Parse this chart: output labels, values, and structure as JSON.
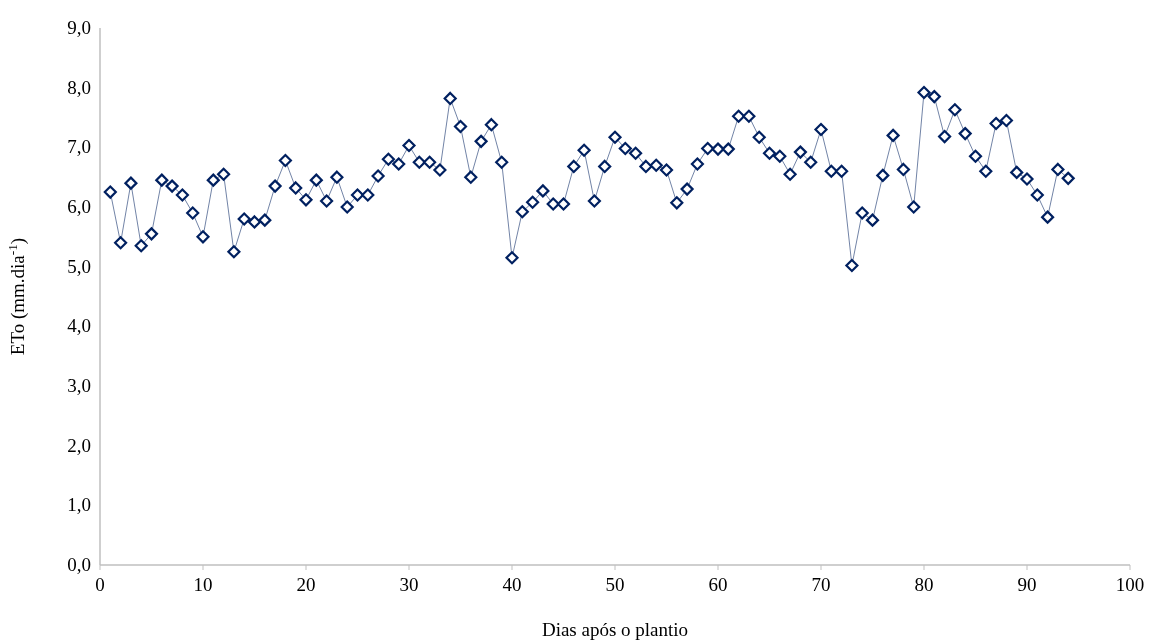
{
  "chart_data": {
    "type": "line",
    "xlabel": "Dias após o plantio",
    "ylabel": "ETo (mm.dia$^{-1}$)",
    "marker": "diamond",
    "line_style": "solid",
    "grid": false,
    "xlim": [
      0,
      100
    ],
    "xticks": [
      0,
      10,
      20,
      30,
      40,
      50,
      60,
      70,
      80,
      90,
      100
    ],
    "ylim": [
      0,
      9
    ],
    "yticks": [
      {
        "value": 0,
        "label": "0,0"
      },
      {
        "value": 1,
        "label": "1,0"
      },
      {
        "value": 2,
        "label": "2,0"
      },
      {
        "value": 3,
        "label": "3,0"
      },
      {
        "value": 4,
        "label": "4,0"
      },
      {
        "value": 5,
        "label": "5,0"
      },
      {
        "value": 6,
        "label": "6,0"
      },
      {
        "value": 7,
        "label": "7,0"
      },
      {
        "value": 8,
        "label": "8,0"
      },
      {
        "value": 9,
        "label": "9,0"
      }
    ],
    "x": [
      1,
      2,
      3,
      4,
      5,
      6,
      7,
      8,
      9,
      10,
      11,
      12,
      13,
      14,
      15,
      16,
      17,
      18,
      19,
      20,
      21,
      22,
      23,
      24,
      25,
      26,
      27,
      28,
      29,
      30,
      31,
      32,
      33,
      34,
      35,
      36,
      37,
      38,
      39,
      40,
      41,
      42,
      43,
      44,
      45,
      46,
      47,
      48,
      49,
      50,
      51,
      52,
      53,
      54,
      55,
      56,
      57,
      58,
      59,
      60,
      61,
      62,
      63,
      64,
      65,
      66,
      67,
      68,
      69,
      70,
      71,
      72,
      73,
      74,
      75,
      76,
      77,
      78,
      79,
      80,
      81,
      82,
      83,
      84,
      85,
      86,
      87,
      88,
      89,
      90,
      91,
      92,
      93,
      94
    ],
    "series": [
      {
        "color": "#002060",
        "values": [
          6.25,
          5.4,
          6.4,
          5.35,
          5.55,
          6.45,
          6.35,
          6.2,
          5.9,
          5.5,
          6.45,
          6.55,
          5.25,
          5.8,
          5.75,
          5.78,
          6.35,
          6.78,
          6.32,
          6.12,
          6.45,
          6.1,
          6.5,
          6.0,
          6.2,
          6.2,
          6.52,
          6.8,
          6.72,
          7.03,
          6.75,
          6.75,
          6.62,
          7.82,
          7.35,
          6.5,
          7.1,
          7.38,
          6.75,
          5.15,
          5.92,
          6.08,
          6.27,
          6.05,
          6.05,
          6.68,
          6.95,
          6.1,
          6.68,
          7.17,
          6.98,
          6.9,
          6.68,
          6.7,
          6.62,
          6.07,
          6.3,
          6.72,
          6.98,
          6.97,
          6.97,
          7.52,
          7.52,
          7.17,
          6.9,
          6.85,
          6.55,
          6.92,
          6.75,
          7.3,
          6.6,
          6.6,
          5.02,
          5.9,
          5.78,
          6.53,
          7.2,
          6.63,
          6.0,
          7.92,
          7.85,
          7.18,
          7.63,
          7.23,
          6.85,
          6.6,
          7.4,
          7.45,
          6.58,
          6.47,
          6.2,
          5.83,
          6.63,
          6.48
        ]
      }
    ]
  }
}
